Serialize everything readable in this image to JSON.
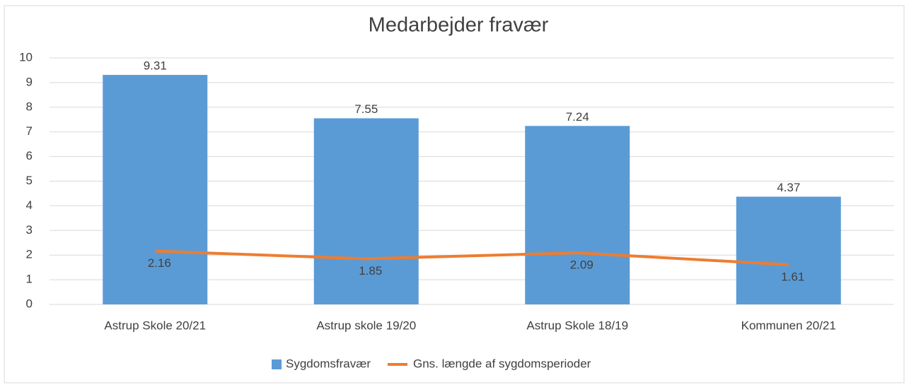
{
  "chart_data": {
    "type": "bar",
    "title": "Medarbejder fravær",
    "categories": [
      "Astrup Skole 20/21",
      "Astrup skole 19/20",
      "Astrup Skole 18/19",
      "Kommunen 20/21"
    ],
    "series": [
      {
        "name": "Sygdomsfravær",
        "type": "bar",
        "color": "#5b9bd5",
        "values": [
          9.31,
          7.55,
          7.24,
          4.37
        ]
      },
      {
        "name": "Gns. længde af sygdomsperioder",
        "type": "line",
        "color": "#ed7d31",
        "values": [
          2.16,
          1.85,
          2.09,
          1.61
        ]
      }
    ],
    "ylim": [
      0,
      10
    ],
    "yticks": [
      0,
      1,
      2,
      3,
      4,
      5,
      6,
      7,
      8,
      9,
      10
    ],
    "grid": true,
    "legend": "bottom"
  }
}
